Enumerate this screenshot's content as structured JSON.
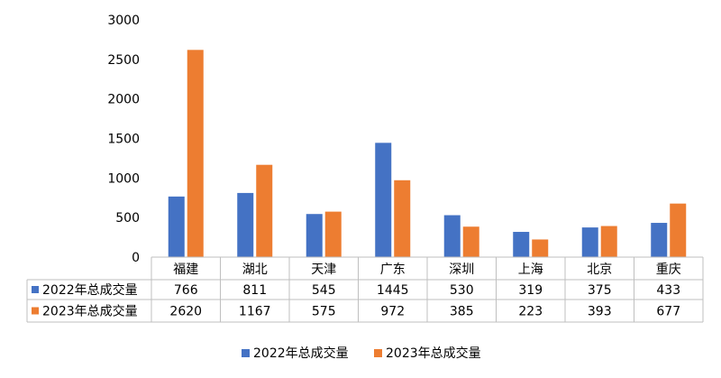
{
  "chart_data": {
    "type": "bar",
    "categories": [
      "福建",
      "湖北",
      "天津",
      "广东",
      "深圳",
      "上海",
      "北京",
      "重庆"
    ],
    "series": [
      {
        "name": "2022年总成交量",
        "values": [
          766,
          811,
          545,
          1445,
          530,
          319,
          375,
          433
        ],
        "color": "#4472C4"
      },
      {
        "name": "2023年总成交量",
        "values": [
          2620,
          1167,
          575,
          972,
          385,
          223,
          393,
          677
        ],
        "color": "#ED7D31"
      }
    ],
    "ylim": [
      0,
      3000
    ],
    "yticks": [
      "0",
      "500",
      "1000",
      "1500",
      "2000",
      "2500",
      "3000"
    ],
    "grid": false,
    "legend": "bottom",
    "data_table": true
  }
}
